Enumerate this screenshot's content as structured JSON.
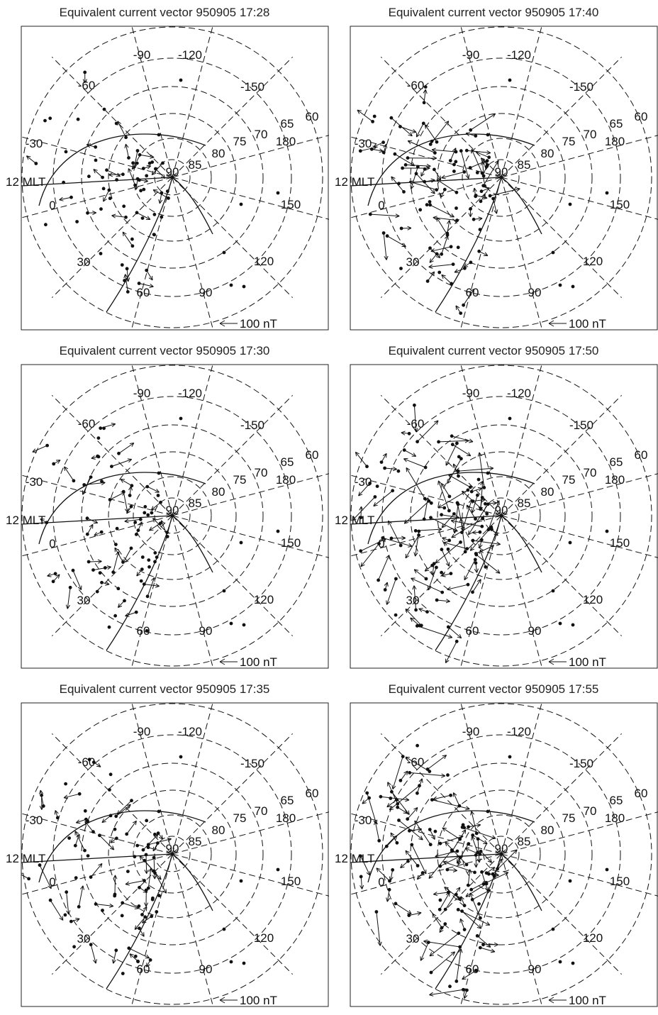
{
  "panels": [
    {
      "title": "Equivalent current vector 950905 17:28",
      "seed": 11,
      "density": 0.35
    },
    {
      "title": "Equivalent current vector 950905 17:40",
      "seed": 23,
      "density": 0.75
    },
    {
      "title": "Equivalent current vector 950905 17:30",
      "seed": 37,
      "density": 0.45
    },
    {
      "title": "Equivalent current vector 950905 17:50",
      "seed": 41,
      "density": 0.95
    },
    {
      "title": "Equivalent current vector 950905 17:35",
      "seed": 53,
      "density": 0.6
    },
    {
      "title": "Equivalent current vector 950905 17:55",
      "seed": 67,
      "density": 1.0
    }
  ],
  "labels": {
    "mlt": "12 MLT",
    "scale": "100 nT",
    "latitudes": [
      "90",
      "85",
      "80",
      "75",
      "70",
      "65",
      "60"
    ],
    "longitudes": [
      "-90",
      "-120",
      "-60",
      "-150",
      "-30",
      "180",
      "0",
      "150",
      "30",
      "120",
      "60",
      "90"
    ]
  },
  "colors": {
    "ink": "#111111",
    "frame": "#222222"
  }
}
